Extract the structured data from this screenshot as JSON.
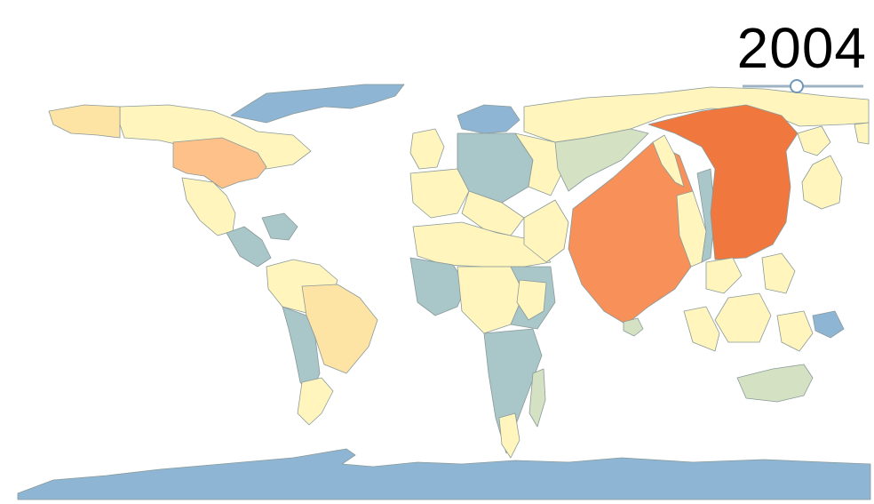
{
  "year_display": {
    "year": "2004"
  },
  "timeline": {
    "selected_year": 2004
  },
  "colors": {
    "ocean": "#ffffff",
    "blue": "#8eb6d4",
    "blue_green": "#a9c6c9",
    "pale_green": "#d4e1c2",
    "pale_yellow": "#fff5bd",
    "light_orange": "#fde3a4",
    "orange": "#fdc189",
    "dark_orange": "#f79059",
    "red_orange": "#f0783f"
  }
}
